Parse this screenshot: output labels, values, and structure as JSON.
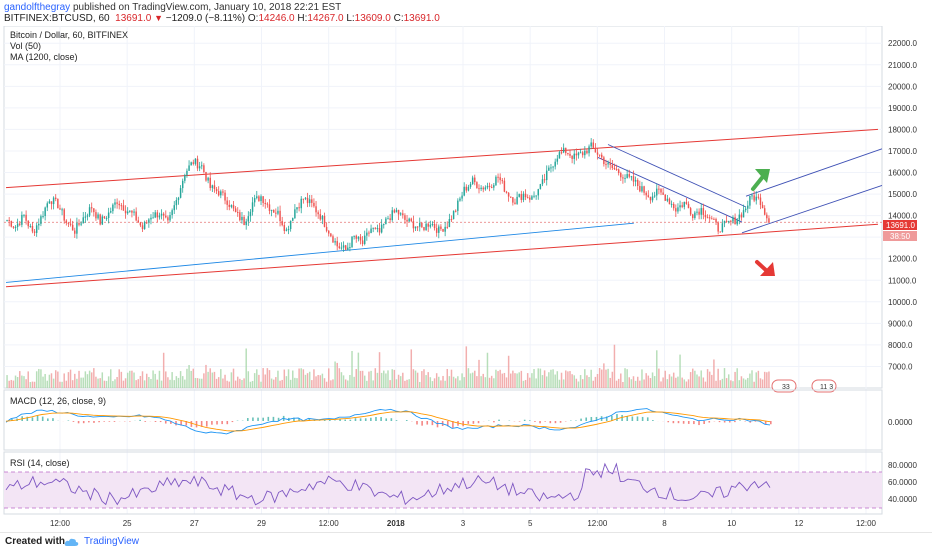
{
  "header": {
    "author": "gandolfthegray",
    "published_text": "published on TradingView.com, January 10, 2018 22:21 EST",
    "symbol": "BITFINEX:BTCUSD, 60",
    "last": "13691.0",
    "change": "−1209.0 (−8.11%)",
    "open_label": "O:",
    "open": "14246.0",
    "high_label": "H:",
    "high": "14267.0",
    "low_label": "L:",
    "low": "13609.0",
    "close_label": "C:",
    "close": "13691.0"
  },
  "legend": {
    "title": "Bitcoin / Dollar, 60, BITFINEX",
    "vol": "Vol (50)",
    "ma": "MA (1200, close)"
  },
  "footer": {
    "created": "Created with",
    "brand": "TradingView"
  },
  "badges": {
    "current_price": "13691.0",
    "countdown": "38:50",
    "events_a": "33",
    "events_b": "11 3"
  },
  "colors": {
    "up": "#26a69a",
    "down": "#ef5350",
    "channel": "#e53935",
    "trendline": "#3f51b5",
    "ma": "#1e88e5",
    "macd": "#2196f3",
    "signal": "#ff9800",
    "rsi": "#7e57c2",
    "rsi_band": "#f3e5f5"
  },
  "chart_data": [
    {
      "type": "candlestick",
      "title": "Bitcoin / Dollar, 60, BITFINEX",
      "ylim": [
        6000,
        22800
      ],
      "y_ticks": [
        7000,
        8000,
        9000,
        10000,
        11000,
        12000,
        13000,
        14000,
        15000,
        16000,
        17000,
        18000,
        19000,
        20000,
        21000,
        22000
      ],
      "y_tick_labels": [
        "7000.0",
        "8000.0",
        "9000.0",
        "10000.0",
        "11000.0",
        "12000.0",
        "13000.0",
        "14000.0",
        "15000.0",
        "16000.0",
        "17000.0",
        "18000.0",
        "19000.0",
        "20000.0",
        "21000.0",
        "22000.0"
      ],
      "x_ticks": [
        "12:00",
        "25",
        "27",
        "29",
        "12:00",
        "2018",
        "3",
        "5",
        "12:00",
        "8",
        "10",
        "12",
        "12:00"
      ],
      "close_series": [
        13800,
        13500,
        14000,
        13200,
        13900,
        14800,
        14500,
        13700,
        13300,
        13900,
        14400,
        13700,
        14100,
        14700,
        14300,
        14000,
        13400,
        14000,
        14100,
        13600,
        14700,
        16000,
        16500,
        16300,
        15300,
        15100,
        14700,
        14100,
        13700,
        14600,
        14900,
        14400,
        14100,
        13300,
        14300,
        14800,
        14500,
        14000,
        13300,
        12600,
        12400,
        13000,
        12700,
        13400,
        13200,
        13900,
        14200,
        13800,
        13600,
        13400,
        13700,
        13300,
        13600,
        14300,
        15200,
        15600,
        15300,
        15400,
        15800,
        15100,
        14700,
        15000,
        14800,
        15300,
        16100,
        16800,
        17000,
        16700,
        16900,
        17200,
        16800,
        16300,
        16100,
        15800,
        15600,
        15200,
        14900,
        15100,
        14800,
        14300,
        14600,
        14100,
        14300,
        13900,
        13400,
        13600,
        13800,
        14200,
        14900,
        14700,
        13700
      ],
      "current_price": 13691,
      "channel_upper": [
        [
          0,
          15300
        ],
        [
          1,
          18000
        ]
      ],
      "channel_lower": [
        [
          0,
          10700
        ],
        [
          1,
          13600
        ]
      ],
      "ma_line": [
        [
          0,
          10900
        ],
        [
          0.72,
          13650
        ]
      ],
      "series": [
        {
          "name": "Vol (50)",
          "type": "volume"
        },
        {
          "name": "MA (1200, close)",
          "type": "line"
        }
      ]
    },
    {
      "type": "line",
      "title": "MACD (12, 26, close, 9)",
      "ylim": [
        -1,
        1
      ],
      "y_tick_labels": [
        "0.0000"
      ]
    },
    {
      "type": "line",
      "title": "RSI (14, close)",
      "ylim": [
        20,
        90
      ],
      "y_ticks": [
        40,
        60,
        80
      ],
      "y_tick_labels": [
        "40.0000",
        "60.0000",
        "80.0000"
      ],
      "bands": [
        30,
        70
      ]
    }
  ]
}
